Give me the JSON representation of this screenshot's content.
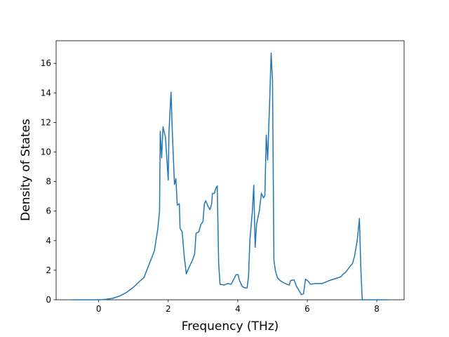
{
  "chart_data": {
    "type": "line",
    "xlabel": "Frequency (THz)",
    "ylabel": "Density of States",
    "color": "#1f77b4",
    "xlim": [
      -1.225,
      8.785
    ],
    "ylim": [
      0,
      17.53
    ],
    "xticks": [
      0,
      2,
      4,
      6,
      8
    ],
    "yticks": [
      0,
      2,
      4,
      6,
      8,
      10,
      12,
      14,
      16
    ],
    "grid": false,
    "x": [
      -0.77,
      0,
      0.2,
      0.4,
      0.6,
      0.8,
      1.0,
      1.2,
      1.3,
      1.4,
      1.5,
      1.6,
      1.7,
      1.75,
      1.77,
      1.81,
      1.85,
      1.92,
      2.0,
      2.02,
      2.08,
      2.12,
      2.16,
      2.18,
      2.22,
      2.26,
      2.32,
      2.34,
      2.4,
      2.46,
      2.52,
      2.56,
      2.62,
      2.7,
      2.76,
      2.8,
      2.88,
      2.94,
      3.0,
      3.04,
      3.08,
      3.14,
      3.2,
      3.25,
      3.27,
      3.33,
      3.37,
      3.41,
      3.45,
      3.49,
      3.61,
      3.71,
      3.81,
      3.89,
      3.95,
      4.01,
      4.05,
      4.13,
      4.21,
      4.27,
      4.31,
      4.35,
      4.42,
      4.46,
      4.5,
      4.54,
      4.62,
      4.68,
      4.74,
      4.78,
      4.82,
      4.86,
      4.92,
      4.96,
      5.0,
      5.04,
      5.08,
      5.14,
      5.22,
      5.32,
      5.42,
      5.48,
      5.52,
      5.62,
      5.69,
      5.77,
      5.83,
      5.89,
      5.95,
      6.03,
      6.09,
      6.23,
      6.43,
      6.63,
      6.83,
      6.96,
      7.04,
      7.1,
      7.18,
      7.24,
      7.3,
      7.36,
      7.44,
      7.5,
      7.54,
      7.58,
      8.33
    ],
    "values": [
      0,
      0,
      0.03,
      0.1,
      0.25,
      0.5,
      0.85,
      1.3,
      1.5,
      2.1,
      2.7,
      3.3,
      4.8,
      6,
      11.4,
      9.6,
      11.7,
      11,
      8.1,
      11.3,
      14.05,
      11.2,
      8.9,
      7.8,
      8.2,
      6.4,
      6.5,
      4.85,
      4.6,
      2.95,
      1.75,
      2.0,
      2.3,
      2.7,
      3.1,
      4.5,
      4.6,
      5.1,
      5.3,
      6.5,
      6.7,
      6.35,
      6.1,
      6.5,
      7.2,
      7.2,
      7.55,
      7.7,
      2.5,
      1.05,
      1.0,
      1.1,
      1.05,
      1.4,
      1.7,
      1.7,
      1.3,
      0.9,
      0.8,
      0.8,
      1.6,
      4.1,
      6.0,
      7.75,
      3.55,
      5.1,
      6.0,
      7.2,
      6.9,
      7.05,
      11.15,
      9.45,
      13.6,
      16.7,
      14.8,
      2.7,
      2.0,
      1.5,
      1.3,
      1.15,
      1.05,
      1.0,
      1.3,
      1.35,
      0.9,
      0.6,
      0.35,
      0.4,
      1.4,
      1.25,
      1.05,
      1.1,
      1.1,
      1.3,
      1.45,
      1.55,
      1.75,
      1.85,
      2.1,
      2.3,
      2.45,
      2.95,
      4.1,
      5.5,
      2.2,
      0,
      0
    ]
  }
}
